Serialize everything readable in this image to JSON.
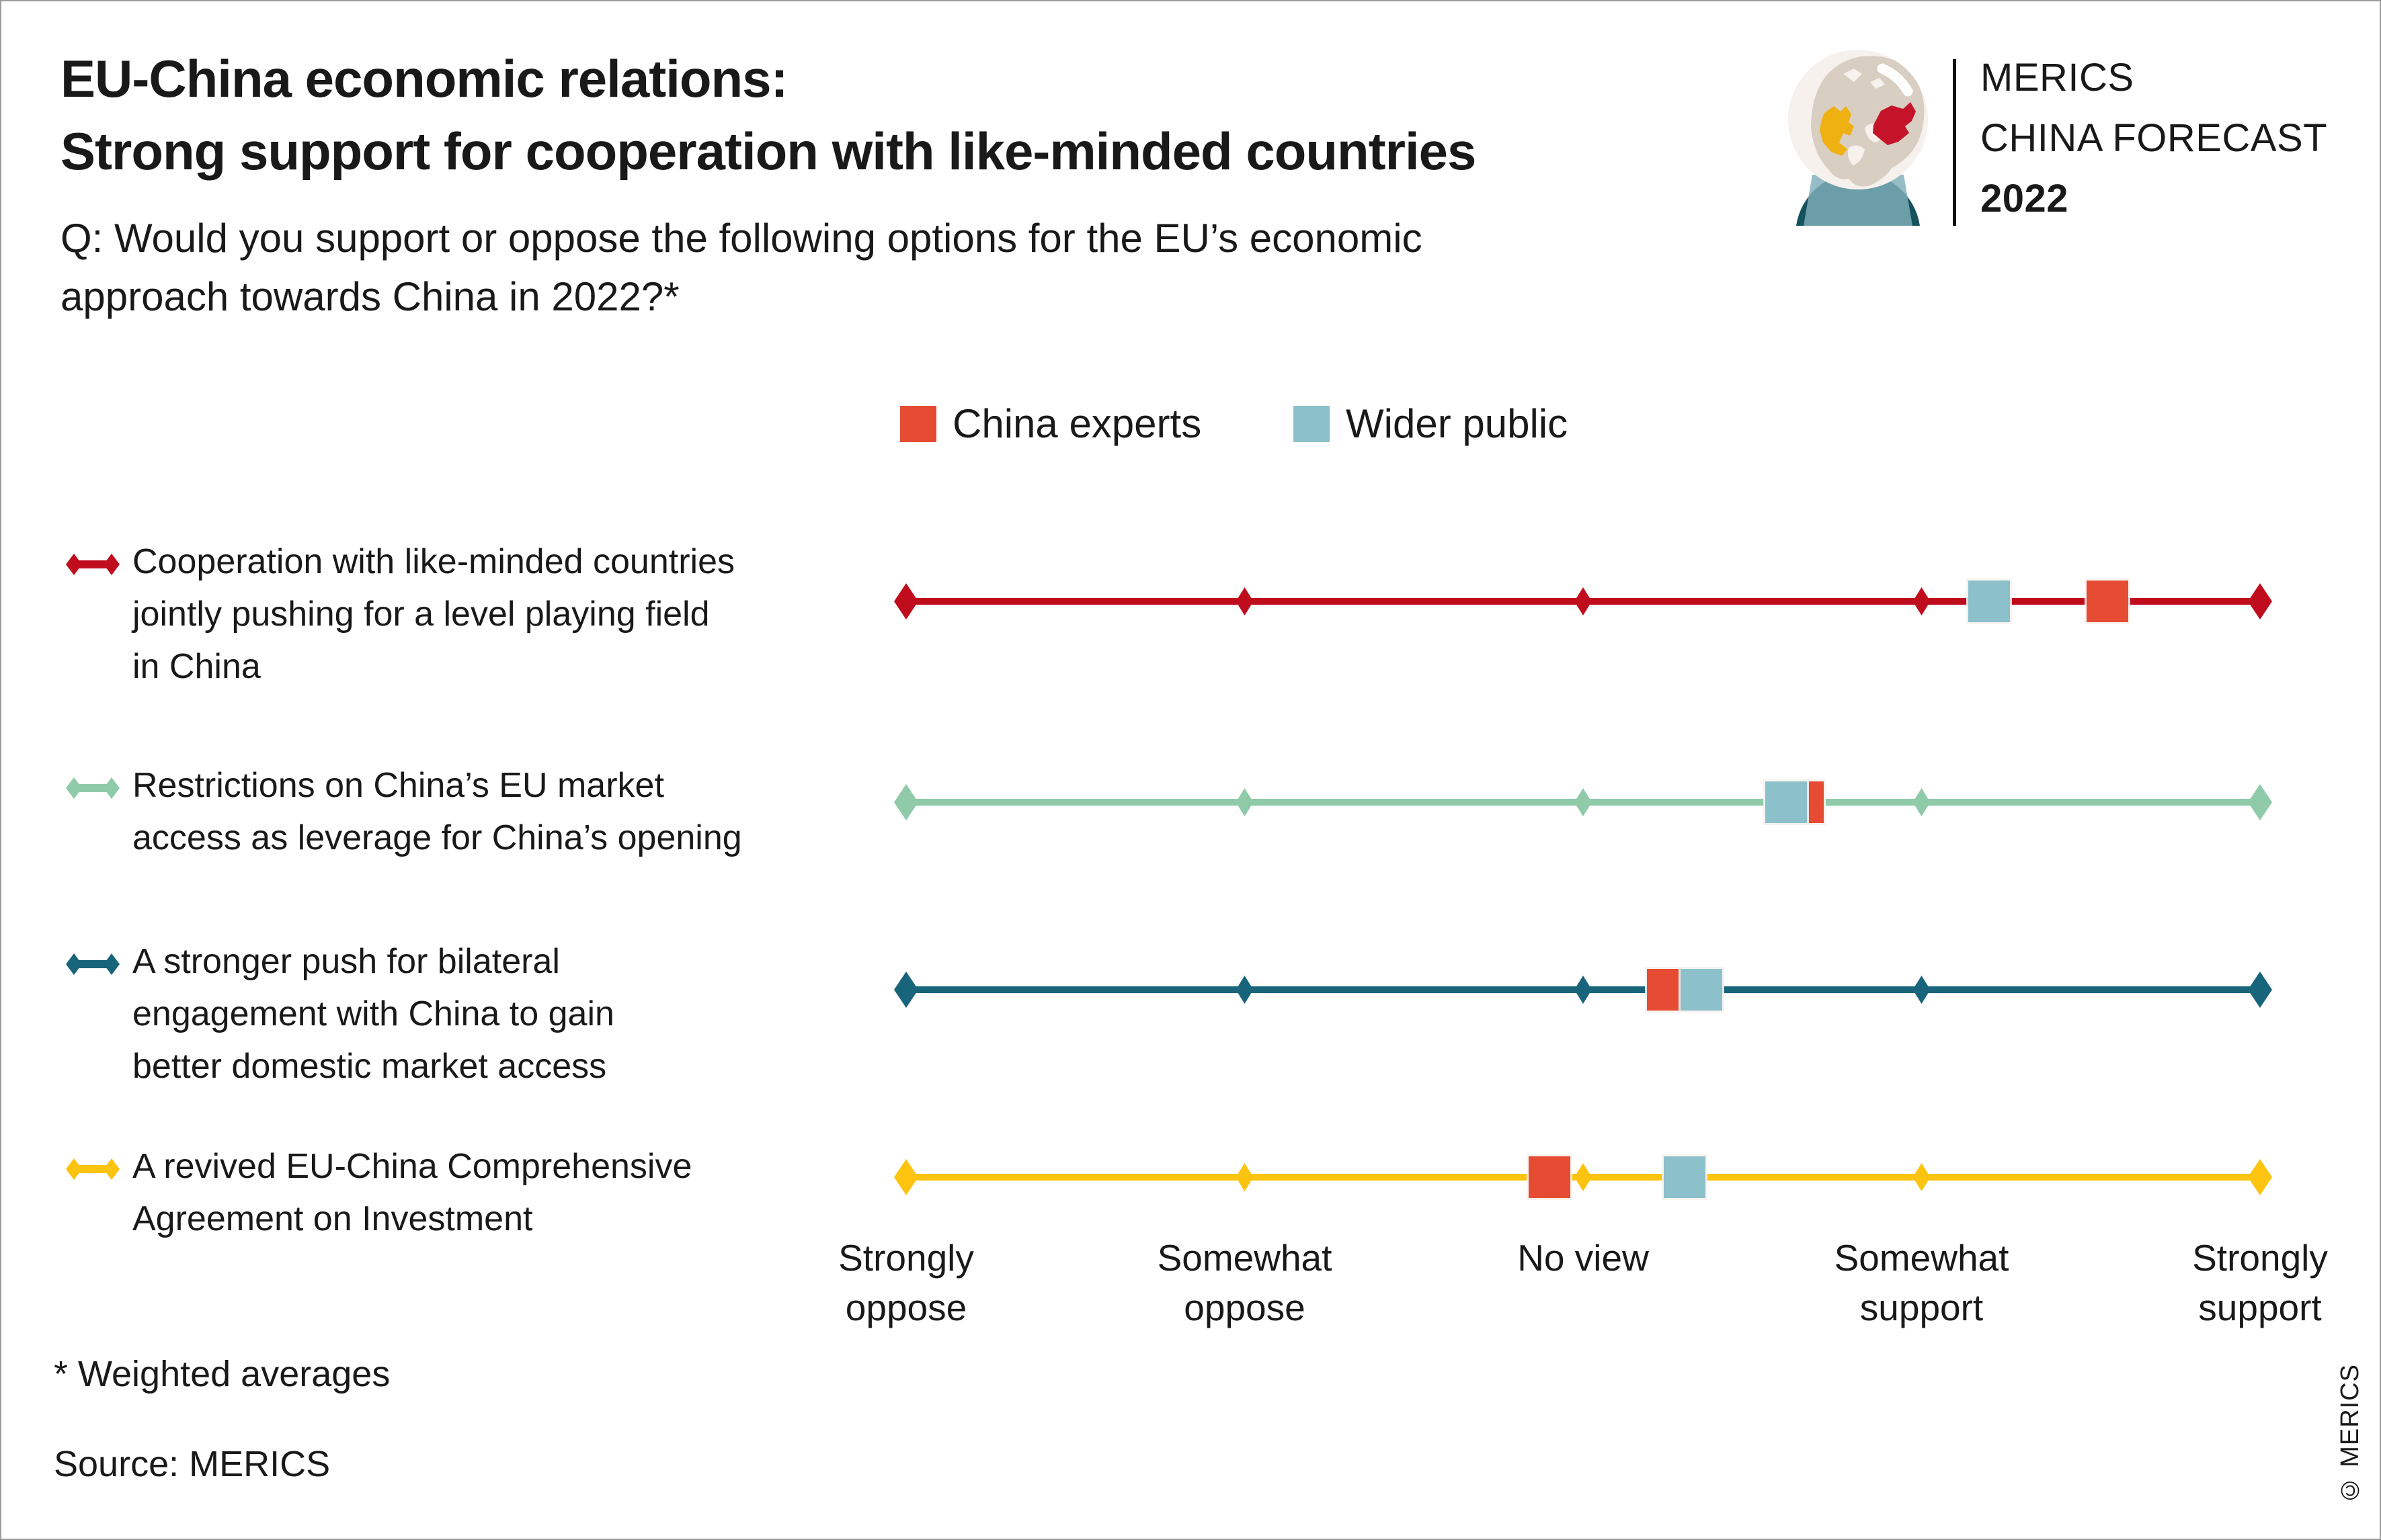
{
  "header": {
    "title_line1": "EU-China economic relations:",
    "title_line2": "Strong support for cooperation with like-minded countries",
    "subtitle_line1": "Q: Would you support or oppose the following options for the EU’s economic",
    "subtitle_line2": "approach towards China in 2022?*"
  },
  "logo": {
    "org": "MERICS",
    "product": "CHINA FORECAST",
    "year": "2022",
    "colors": {
      "ball": "#f6f1ed",
      "land": "#d9cec2",
      "europe": "#efb011",
      "china": "#c5142a",
      "base_dark": "#14525e",
      "base_glass": "#7fafb8"
    }
  },
  "footer": {
    "footnote": "* Weighted averages",
    "source": "Source: MERICS",
    "copyright": "© MERICS"
  },
  "chart_data": {
    "type": "scatter",
    "subtype": "dot-plot-weighted-averages",
    "x_axis": {
      "min": 1,
      "max": 5,
      "tick_values": [
        1,
        2,
        3,
        4,
        5
      ],
      "tick_labels": [
        [
          "Strongly",
          "oppose"
        ],
        [
          "Somewhat",
          "oppose"
        ],
        [
          "No view"
        ],
        [
          "Somewhat",
          "support"
        ],
        [
          "Strongly",
          "support"
        ]
      ],
      "grid": false
    },
    "legend_position": "top-center",
    "series": [
      {
        "name": "China experts",
        "color": "#e64b33",
        "values": [
          4.55,
          3.65,
          3.25,
          2.9
        ]
      },
      {
        "name": "Wider public",
        "color": "#8cc0ca",
        "values": [
          4.2,
          3.6,
          3.35,
          3.3
        ]
      }
    ],
    "rows": [
      {
        "label_lines": [
          "Cooperation with like-minded countries",
          "jointly pushing for a level playing field",
          "in China"
        ],
        "line_color": "#c00d1e"
      },
      {
        "label_lines": [
          "Restrictions on China’s EU market",
          "access as leverage for China’s opening"
        ],
        "line_color": "#8fcaa9"
      },
      {
        "label_lines": [
          "A stronger push for bilateral",
          "engagement with China to gain",
          "better domestic market access"
        ],
        "line_color": "#17647b"
      },
      {
        "label_lines": [
          "A revived EU-China Comprehensive",
          "Agreement on Investment"
        ],
        "line_color": "#fcc30f"
      }
    ],
    "note": "Values are weighted averages on a 1–5 scale (Strongly oppose = 1, Strongly support = 5), read from marker positions"
  }
}
